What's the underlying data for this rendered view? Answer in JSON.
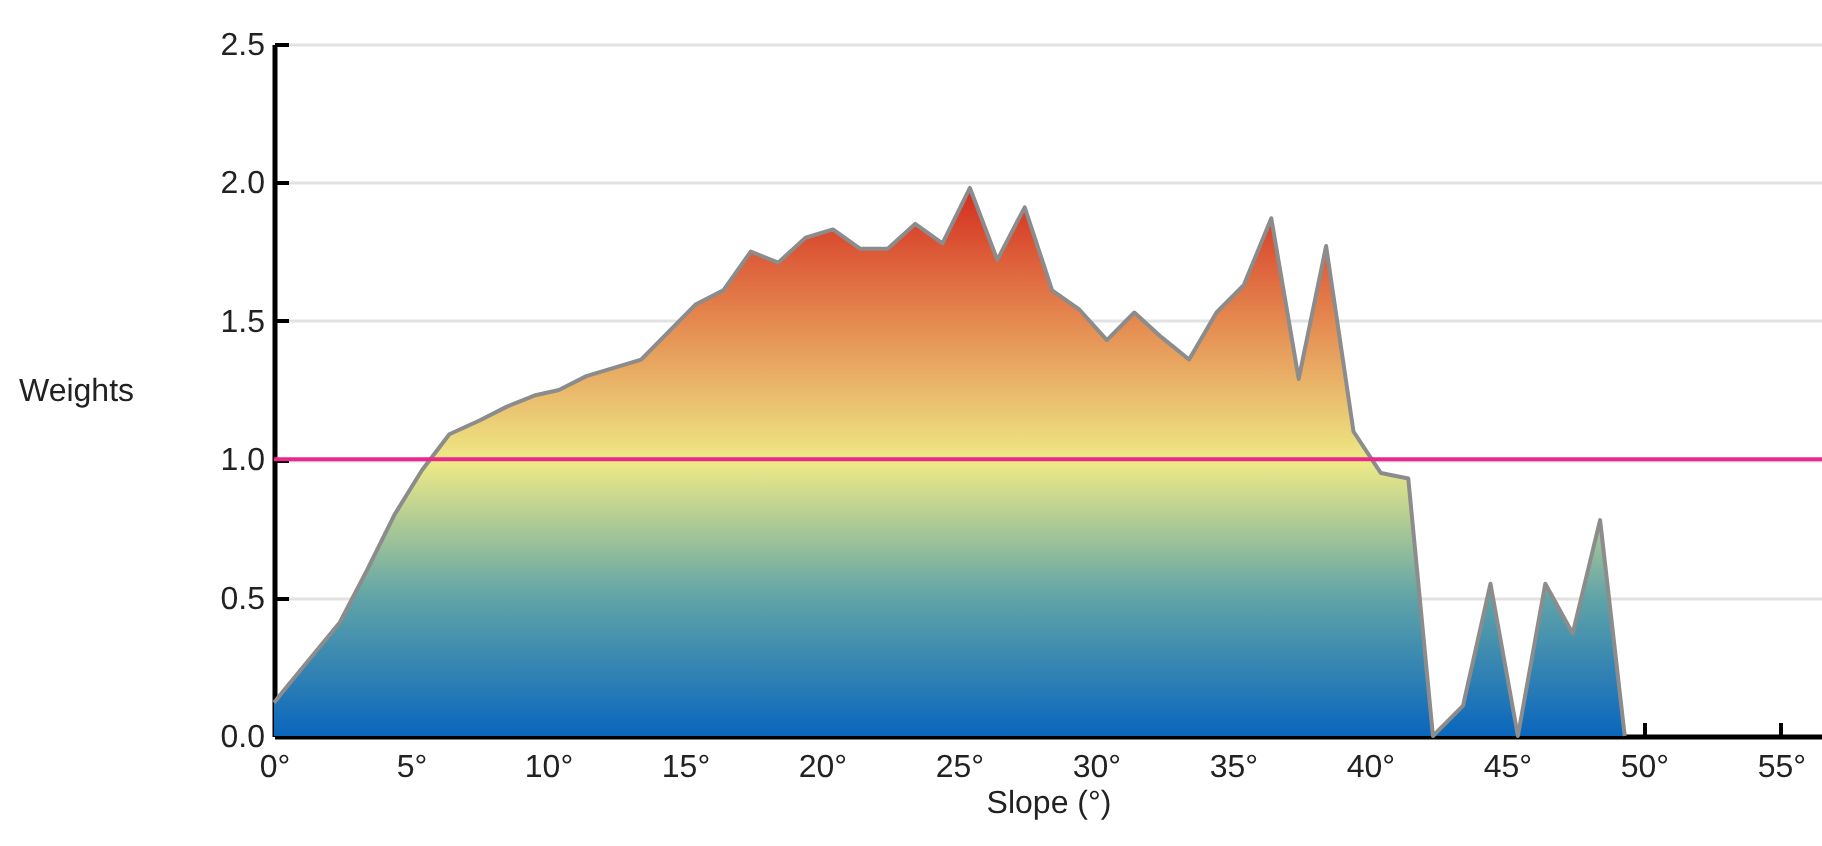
{
  "chart_data": {
    "type": "area",
    "xlabel": "Slope (°)",
    "ylabel": "Weights",
    "series": [
      {
        "color": "#d42c1e",
        "x": [
          0,
          0.4,
          1.4,
          2.4,
          3.4,
          4.4,
          5.4,
          6.4,
          7.5,
          8.5,
          9.5,
          10.4,
          11.4,
          12.4,
          13.4,
          14.4,
          15.4,
          16.4,
          17.4,
          18.4,
          19.4,
          20.4,
          21.4,
          22.4,
          23.4,
          24.4,
          25.4,
          26.4,
          27.4,
          28.4,
          29.4,
          30.4,
          31.4,
          32.4,
          33.4,
          34.4,
          35.4,
          36.4,
          37.4,
          38.4,
          39.4,
          40.4,
          41.4,
          42.3,
          43.4,
          44.4,
          45.4,
          46.4,
          47.4,
          48.4,
          49.3
        ],
        "values": [
          0.12,
          0.17,
          0.29,
          0.41,
          0.6,
          0.8,
          0.96,
          1.09,
          1.14,
          1.19,
          1.23,
          1.25,
          1.3,
          1.33,
          1.36,
          1.46,
          1.56,
          1.61,
          1.75,
          1.71,
          1.8,
          1.83,
          1.76,
          1.76,
          1.85,
          1.78,
          1.98,
          1.72,
          1.91,
          1.61,
          1.54,
          1.43,
          1.53,
          1.44,
          1.36,
          1.53,
          1.63,
          1.87,
          1.29,
          1.77,
          1.1,
          0.95,
          0.93,
          0,
          0.11,
          0.55,
          0,
          0.55,
          0.37,
          0.78,
          0
        ]
      }
    ],
    "xlim": [
      0,
      56.5
    ],
    "xticks": [
      {
        "value": 0,
        "label": "0°"
      },
      {
        "value": 5,
        "label": "5°"
      },
      {
        "value": 10,
        "label": "10°"
      },
      {
        "value": 15,
        "label": "15°"
      },
      {
        "value": 20,
        "label": "20°"
      },
      {
        "value": 25,
        "label": "25°"
      },
      {
        "value": 30,
        "label": "30°"
      },
      {
        "value": 35,
        "label": "35°"
      },
      {
        "value": 40,
        "label": "40°"
      },
      {
        "value": 45,
        "label": "45°"
      },
      {
        "value": 50,
        "label": "50°"
      },
      {
        "value": 55,
        "label": "55°"
      }
    ],
    "ylim": [
      0,
      2.5
    ],
    "yticks": [
      {
        "value": 0,
        "label": "0.0"
      },
      {
        "value": 0.5,
        "label": "0.5"
      },
      {
        "value": 1,
        "label": "1.0"
      },
      {
        "value": 1.5,
        "label": "1.5"
      },
      {
        "value": 2,
        "label": "2.0"
      },
      {
        "value": 2.5,
        "label": "2.5"
      }
    ],
    "ref_lines": [
      {
        "axis": "y",
        "value": 1,
        "color": "#e8288a"
      }
    ],
    "grid": "y"
  }
}
